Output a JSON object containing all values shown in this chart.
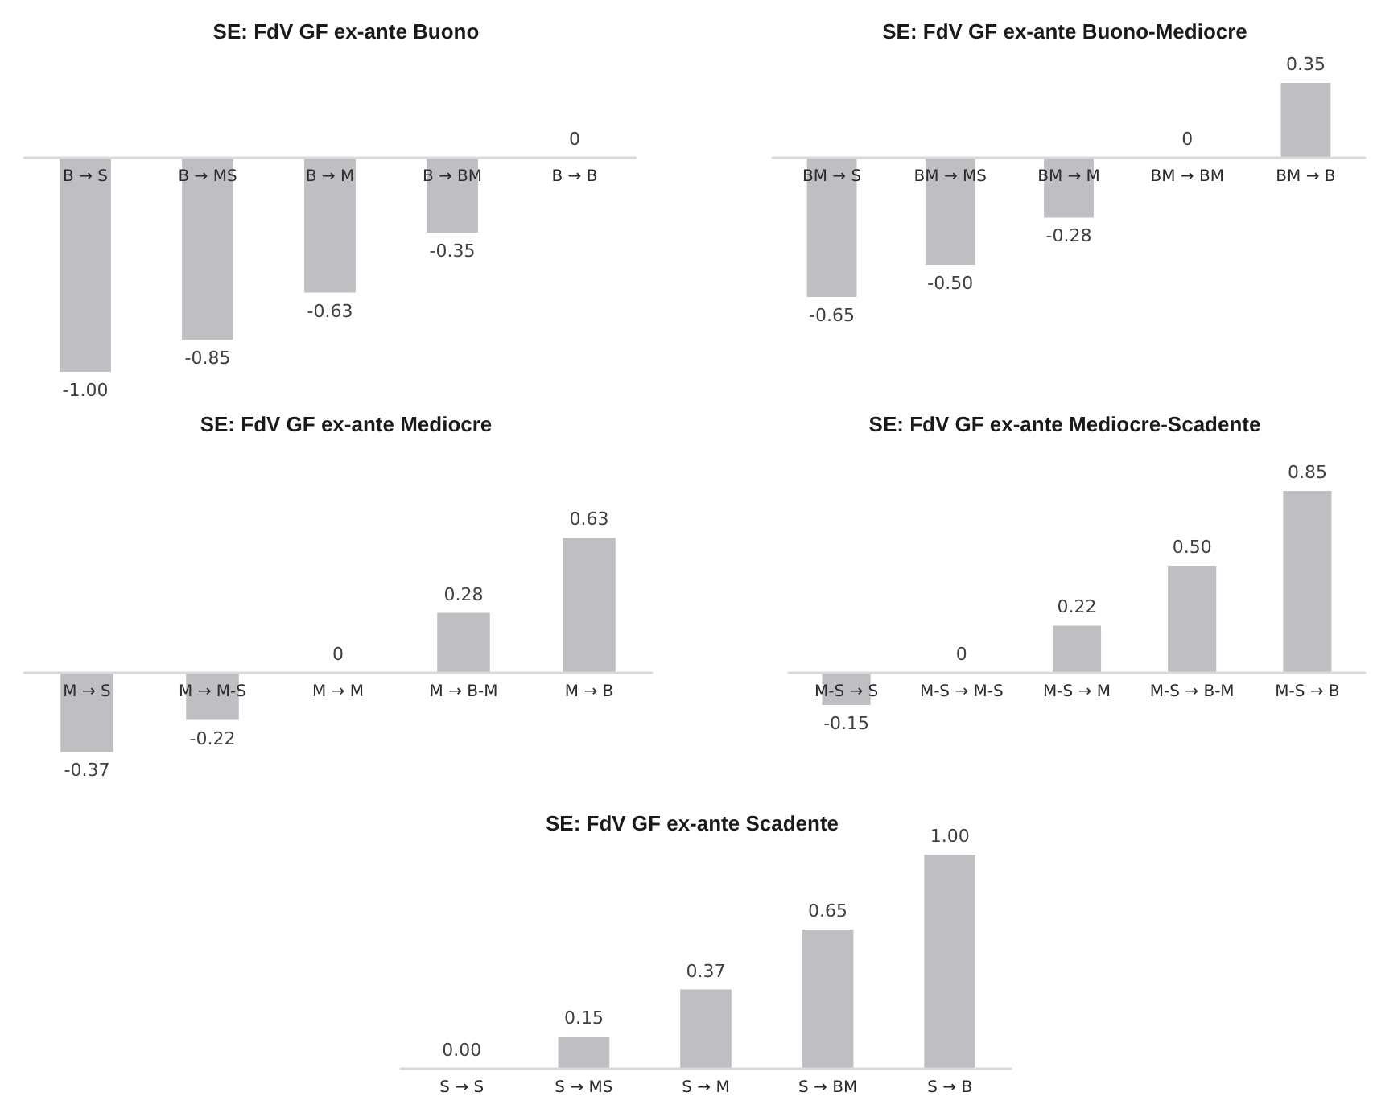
{
  "chart_data": [
    {
      "type": "bar",
      "title": "SE: FdV GF ex-ante Buono",
      "categories": [
        "B → S",
        "B → MS",
        "B → M",
        "B → BM",
        "B → B"
      ],
      "values": [
        -1.0,
        -0.85,
        -0.63,
        -0.35,
        0
      ],
      "value_labels": [
        "-1.00",
        "-0.85",
        "-0.63",
        "-0.35",
        "0"
      ],
      "color": "#bfbfc3",
      "tick_labels": "x"
    },
    {
      "type": "bar",
      "title": "SE: FdV GF ex-ante Buono-Mediocre",
      "categories": [
        "BM → S",
        "BM → MS",
        "BM → M",
        "BM → BM",
        "BM → B"
      ],
      "values": [
        -0.65,
        -0.5,
        -0.28,
        0,
        0.35
      ],
      "value_labels": [
        "-0.65",
        "-0.50",
        "-0.28",
        "0",
        "0.35"
      ],
      "color": "#bfbfc3",
      "tick_labels": "x"
    },
    {
      "type": "bar",
      "title": "SE: FdV GF ex-ante Mediocre",
      "categories": [
        "M → S",
        "M → M-S",
        "M → M",
        "M → B-M",
        "M → B"
      ],
      "values": [
        -0.37,
        -0.22,
        0,
        0.28,
        0.63
      ],
      "value_labels": [
        "-0.37",
        "-0.22",
        "0",
        "0.28",
        "0.63"
      ],
      "color": "#bfbfc3",
      "tick_labels": "x"
    },
    {
      "type": "bar",
      "title": "SE: FdV GF ex-ante Mediocre-Scadente",
      "categories": [
        "M-S → S",
        "M-S → M-S",
        "M-S → M",
        "M-S → B-M",
        "M-S → B"
      ],
      "values": [
        -0.15,
        0,
        0.22,
        0.5,
        0.85
      ],
      "value_labels": [
        "-0.15",
        "0",
        "0.22",
        "0.50",
        "0.85"
      ],
      "color": "#bfbfc3",
      "tick_labels": "x"
    },
    {
      "type": "bar",
      "title": "SE: FdV GF ex-ante Scadente",
      "categories": [
        "S → S",
        "S → MS",
        "S → M",
        "S → BM",
        "S → B"
      ],
      "values": [
        0,
        0.15,
        0.37,
        0.65,
        1.0
      ],
      "value_labels": [
        "0.00",
        "0.15",
        "0.37",
        "0.65",
        "1.00"
      ],
      "color": "#bfbfc3",
      "tick_labels": "x"
    }
  ]
}
